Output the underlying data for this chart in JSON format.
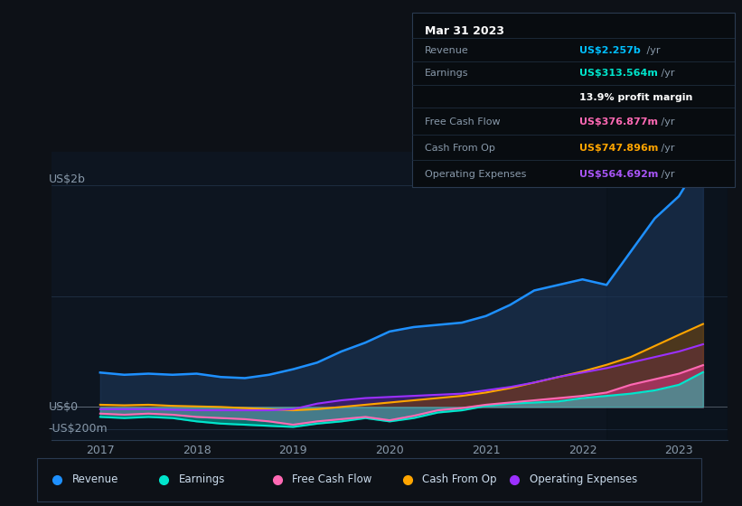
{
  "bg_color": "#0d1117",
  "plot_bg_color": "#0d1520",
  "grid_color": "#1e2d40",
  "title_date": "Mar 31 2023",
  "tooltip": {
    "Revenue": {
      "value": "US$2.257b /yr",
      "color": "#00bfff"
    },
    "Earnings": {
      "value": "US$313.564m /yr",
      "color": "#00e5cc"
    },
    "profit_margin": "13.9% profit margin",
    "Free Cash Flow": {
      "value": "US$376.877m /yr",
      "color": "#ff69b4"
    },
    "Cash From Op": {
      "value": "US$747.896m /yr",
      "color": "#ffa500"
    },
    "Operating Expenses": {
      "value": "US$564.692m /yr",
      "color": "#a855f7"
    }
  },
  "y_label_top": "US$2b",
  "y_label_zero": "US$0",
  "y_label_neg": "-US$200m",
  "x_ticks": [
    2017,
    2018,
    2019,
    2020,
    2021,
    2022,
    2023
  ],
  "ylim": [
    -300,
    2300
  ],
  "xlim": [
    2016.5,
    2023.5
  ],
  "line_colors": {
    "Revenue": "#1e90ff",
    "Earnings": "#00e5cc",
    "Free_Cash_Flow": "#ff69b4",
    "Cash_From_Op": "#ffa500",
    "Operating_Expenses": "#9b30ff"
  },
  "fill_colors": {
    "Revenue": "#1e3a5f",
    "Earnings": "#00e5cc",
    "Free_Cash_Flow": "#cc3377",
    "Cash_From_Op": "#7a4500",
    "Operating_Expenses": "#4a1a7a"
  },
  "highlight_x": 2022.25,
  "legend": [
    {
      "label": "Revenue",
      "color": "#1e90ff"
    },
    {
      "label": "Earnings",
      "color": "#00e5cc"
    },
    {
      "label": "Free Cash Flow",
      "color": "#ff69b4"
    },
    {
      "label": "Cash From Op",
      "color": "#ffa500"
    },
    {
      "label": "Operating Expenses",
      "color": "#9b30ff"
    }
  ],
  "time_points": [
    2017.0,
    2017.25,
    2017.5,
    2017.75,
    2018.0,
    2018.25,
    2018.5,
    2018.75,
    2019.0,
    2019.25,
    2019.5,
    2019.75,
    2020.0,
    2020.25,
    2020.5,
    2020.75,
    2021.0,
    2021.25,
    2021.5,
    2021.75,
    2022.0,
    2022.25,
    2022.5,
    2022.75,
    2023.0,
    2023.25
  ],
  "revenue": [
    310,
    290,
    300,
    290,
    300,
    270,
    260,
    290,
    340,
    400,
    500,
    580,
    680,
    720,
    740,
    760,
    820,
    920,
    1050,
    1100,
    1150,
    1100,
    1400,
    1700,
    1900,
    2257
  ],
  "earnings": [
    -90,
    -100,
    -90,
    -100,
    -130,
    -150,
    -160,
    -170,
    -180,
    -150,
    -130,
    -100,
    -130,
    -100,
    -50,
    -30,
    10,
    30,
    40,
    50,
    80,
    100,
    120,
    150,
    200,
    314
  ],
  "free_cash_flow": [
    -60,
    -70,
    -60,
    -70,
    -90,
    -100,
    -110,
    -130,
    -160,
    -130,
    -110,
    -90,
    -120,
    -80,
    -30,
    -10,
    20,
    40,
    60,
    80,
    100,
    130,
    200,
    250,
    300,
    377
  ],
  "cash_from_op": [
    20,
    15,
    20,
    10,
    5,
    0,
    -10,
    -20,
    -30,
    -20,
    0,
    20,
    40,
    60,
    80,
    100,
    130,
    170,
    220,
    270,
    320,
    380,
    450,
    550,
    650,
    748
  ],
  "operating_expenses": [
    -20,
    -20,
    -20,
    -25,
    -30,
    -30,
    -30,
    -30,
    -20,
    30,
    60,
    80,
    90,
    100,
    110,
    120,
    150,
    180,
    220,
    270,
    310,
    350,
    400,
    450,
    500,
    565
  ]
}
